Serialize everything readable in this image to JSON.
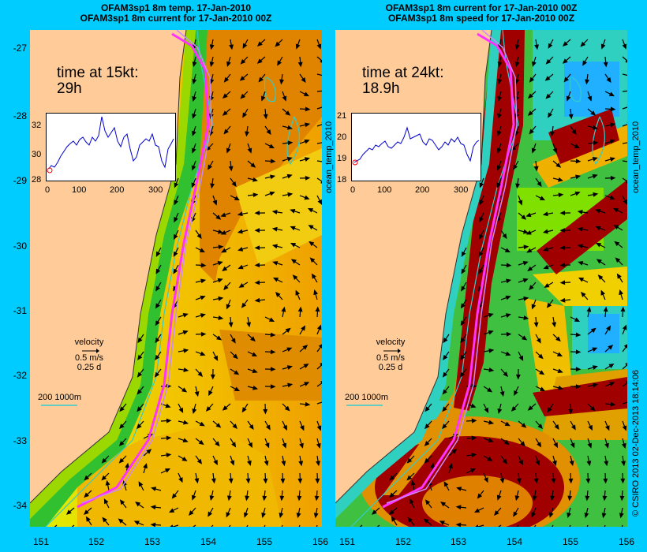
{
  "left_panel": {
    "title_line1": "OFAM3sp1 8m temp. 17-Jan-2010",
    "title_line2": "OFAM3sp1 8m current for 17-Jan-2010 00Z",
    "time_label": "time at 15kt:",
    "time_value": "29h",
    "inset_y_ticks": [
      "32",
      "30",
      "28"
    ],
    "side_label": "ocean_temp_2010"
  },
  "right_panel": {
    "title_line1": "OFAM3sp1 8m current for 17-Jan-2010 00Z",
    "title_line2": "OFAM3sp1 8m speed for 17-Jan-2010 00Z",
    "time_label": "time at 24kt:",
    "time_value": "18.9h",
    "inset_y_ticks": [
      "21",
      "20",
      "19",
      "18"
    ],
    "side_label": "ocean_temp_2010"
  },
  "inset_x_ticks": [
    "0",
    "100",
    "200",
    "300"
  ],
  "y_ticks": [
    "-27",
    "-28",
    "-29",
    "-30",
    "-31",
    "-32",
    "-33",
    "-34"
  ],
  "x_ticks": [
    "151",
    "152",
    "153",
    "154",
    "155",
    "156"
  ],
  "legend": {
    "velocity_label": "velocity",
    "velocity_scale": "0.5 m/s",
    "time_scale": "0.25 d",
    "depth_label": "200  1000m"
  },
  "credit": "© CSIRO 2013   02-Dec-2013 18:14:06",
  "colors": {
    "background": "#00ccff",
    "land": "#ffcc99",
    "track": "#ff33ff",
    "contour": "#33cccc"
  }
}
